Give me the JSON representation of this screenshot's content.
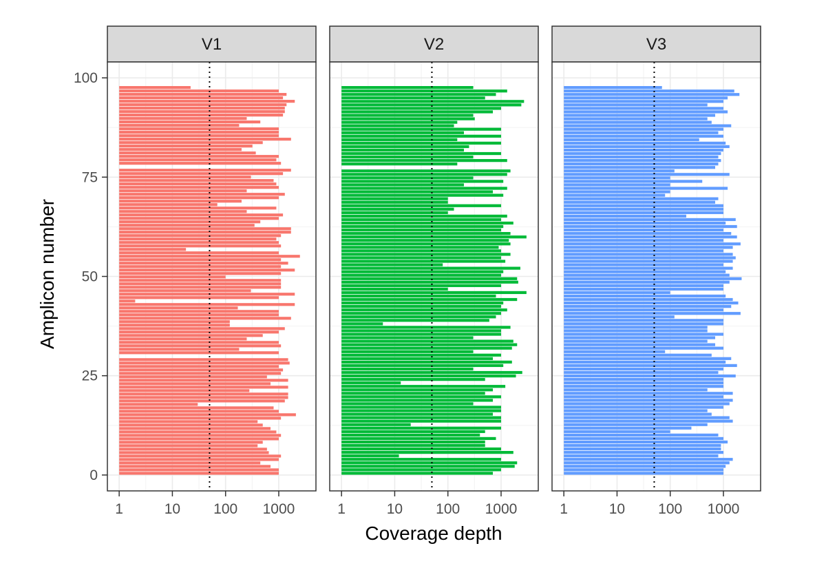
{
  "chart_data": {
    "type": "bar",
    "orientation": "horizontal",
    "xlabel": "Coverage depth",
    "ylabel": "Amplicon number",
    "x_scale": "log10",
    "xlim": [
      0.6,
      5000
    ],
    "ylim": [
      -4,
      104
    ],
    "x_ticks": [
      1,
      10,
      100,
      1000
    ],
    "x_tick_labels": [
      "1",
      "10",
      "100",
      "1000"
    ],
    "y_ticks": [
      0,
      25,
      50,
      75,
      100
    ],
    "y_tick_labels": [
      "0",
      "25",
      "50",
      "75",
      "100"
    ],
    "threshold": 50,
    "threshold_style": "dotted",
    "grid": true,
    "facets": [
      {
        "label": "V1",
        "color": "#F8766D",
        "values": [
          22,
          1000,
          1400,
          1200,
          2000,
          1400,
          1300,
          1300,
          1200,
          250,
          450,
          180,
          1000,
          1000,
          1000,
          1700,
          500,
          320,
          200,
          370,
          1000,
          900,
          1100,
          1,
          1700,
          1200,
          300,
          800,
          900,
          1000,
          250,
          1300,
          1000,
          200,
          70,
          900,
          250,
          1200,
          1000,
          450,
          350,
          1700,
          1700,
          1100,
          900,
          1000,
          1100,
          18,
          1000,
          2500,
          1100,
          1500,
          1100,
          2000,
          1100,
          100,
          1100,
          1100,
          1100,
          300,
          2000,
          1000,
          2,
          2000,
          170,
          1000,
          1000,
          1700,
          120,
          120,
          1300,
          1000,
          500,
          250,
          1000,
          1100,
          180,
          1000,
          1,
          1500,
          1600,
          1000,
          1200,
          1100,
          600,
          1500,
          700,
          1500,
          280,
          1500,
          1500,
          1300,
          30,
          800,
          1000,
          2100,
          1100,
          400,
          500,
          700,
          900,
          1100,
          1000,
          500,
          400,
          600,
          650,
          1100,
          1000,
          450,
          700,
          1000,
          1000
        ]
      },
      {
        "label": "V2",
        "color": "#00BA38",
        "values": [
          300,
          1300,
          800,
          500,
          2700,
          2400,
          1000,
          700,
          300,
          320,
          150,
          130,
          1000,
          200,
          1000,
          150,
          1000,
          250,
          200,
          1000,
          300,
          1300,
          150,
          1,
          1500,
          1300,
          300,
          1100,
          200,
          1300,
          700,
          1100,
          100,
          100,
          1000,
          130,
          100,
          1300,
          1000,
          1700,
          1100,
          1000,
          1500,
          3000,
          1400,
          1500,
          900,
          1000,
          1500,
          1000,
          1200,
          80,
          2300,
          1100,
          1000,
          2000,
          2100,
          1000,
          100,
          3000,
          800,
          2000,
          1100,
          1000,
          1300,
          1000,
          800,
          600,
          6,
          1500,
          1000,
          1000,
          300,
          1700,
          2000,
          1600,
          300,
          1000,
          700,
          1600,
          1100,
          300,
          2500,
          1900,
          500,
          13,
          1200,
          700,
          500,
          1000,
          700,
          300,
          1000,
          1000,
          700,
          1000,
          1000,
          20,
          1000,
          500,
          400,
          800,
          500,
          500,
          1000,
          1700,
          12,
          1000,
          2000,
          1800,
          1000,
          700
        ]
      },
      {
        "label": "V3",
        "color": "#619CFF",
        "values": [
          70,
          1600,
          2000,
          1200,
          1000,
          500,
          1000,
          1200,
          700,
          500,
          600,
          1400,
          1000,
          800,
          1000,
          350,
          1100,
          1300,
          1000,
          900,
          800,
          900,
          800,
          700,
          120,
          1300,
          100,
          400,
          100,
          1200,
          100,
          80,
          800,
          700,
          1000,
          1000,
          1000,
          200,
          1700,
          1100,
          1800,
          1000,
          1400,
          1800,
          1000,
          2100,
          1500,
          1000,
          1500,
          1700,
          1500,
          1000,
          1500,
          1100,
          1300,
          2200,
          1300,
          1000,
          1000,
          100,
          1100,
          1500,
          1900,
          1400,
          1000,
          2100,
          120,
          1000,
          1000,
          500,
          500,
          1000,
          700,
          500,
          700,
          1000,
          80,
          600,
          1400,
          1100,
          1800,
          1000,
          800,
          1700,
          1000,
          1000,
          1000,
          500,
          1500,
          1000,
          1500,
          1300,
          1000,
          500,
          600,
          1300,
          1500,
          500,
          250,
          100,
          800,
          1000,
          1200,
          900,
          900,
          1000,
          800,
          1500,
          1300,
          1100,
          1000,
          1000
        ]
      }
    ]
  }
}
